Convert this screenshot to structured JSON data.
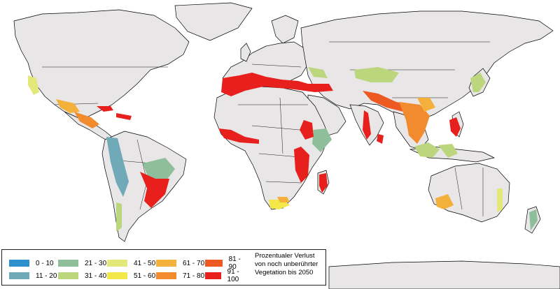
{
  "legend": {
    "title_lines": [
      "Prozentualer Verlust",
      "von noch unberührter",
      "Vegetation bis 2050"
    ],
    "items": [
      {
        "label": "0 - 10",
        "color": "#2e8fcf"
      },
      {
        "label": "11 - 20",
        "color": "#70a9b8"
      },
      {
        "label": "21 - 30",
        "color": "#8fbf9a"
      },
      {
        "label": "31 - 40",
        "color": "#bcd67e"
      },
      {
        "label": "41 - 50",
        "color": "#e2e87a"
      },
      {
        "label": "51 - 60",
        "color": "#f3e84a"
      },
      {
        "label": "61 - 70",
        "color": "#f3b03a"
      },
      {
        "label": "71 - 80",
        "color": "#f28a2e"
      },
      {
        "label": "81 - 90",
        "color": "#ec5a22"
      },
      {
        "label": "91 - 100",
        "color": "#e8201d"
      }
    ]
  },
  "map": {
    "land_color": "#e8e6e6",
    "ocean_color": "#ffffff",
    "border_color": "#000000"
  }
}
